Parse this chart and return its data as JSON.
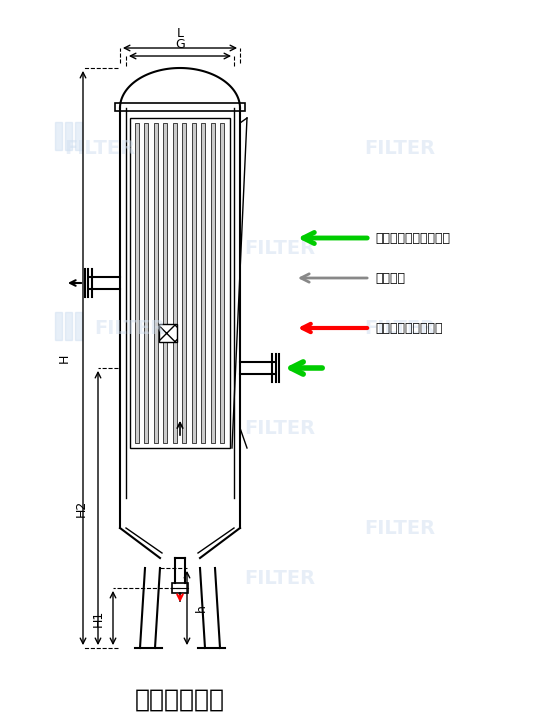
{
  "title": "外形尺寸简图",
  "title_fontsize": 18,
  "background_color": "#ffffff",
  "watermark_text": "FILTER",
  "watermark_color": "#d0dff0",
  "legend_items": [
    {
      "label": "含有水、油、粉尘气体",
      "color": "#00cc00",
      "arrow": "left"
    },
    {
      "label": "洁净气体",
      "color": "#888888",
      "arrow": "left_outline"
    },
    {
      "label": "水、油、粉尘排泄物",
      "color": "#ff0000",
      "arrow": "left"
    }
  ],
  "dim_labels": [
    "L",
    "G",
    "H",
    "H2",
    "H1",
    "h"
  ],
  "line_color": "#000000",
  "green_color": "#00cc00",
  "red_color": "#ff0000",
  "gray_color": "#888888"
}
